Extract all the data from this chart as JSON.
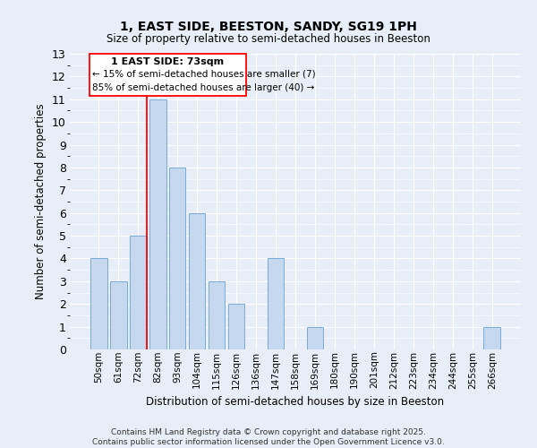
{
  "title": "1, EAST SIDE, BEESTON, SANDY, SG19 1PH",
  "subtitle": "Size of property relative to semi-detached houses in Beeston",
  "xlabel": "Distribution of semi-detached houses by size in Beeston",
  "ylabel": "Number of semi-detached properties",
  "categories": [
    "50sqm",
    "61sqm",
    "72sqm",
    "82sqm",
    "93sqm",
    "104sqm",
    "115sqm",
    "126sqm",
    "136sqm",
    "147sqm",
    "158sqm",
    "169sqm",
    "180sqm",
    "190sqm",
    "201sqm",
    "212sqm",
    "223sqm",
    "234sqm",
    "244sqm",
    "255sqm",
    "266sqm"
  ],
  "values": [
    4,
    3,
    5,
    11,
    8,
    6,
    3,
    2,
    0,
    4,
    0,
    1,
    0,
    0,
    0,
    0,
    0,
    0,
    0,
    0,
    1
  ],
  "bar_color": "#c5d8f0",
  "bar_edge_color": "#7aaad4",
  "background_color": "#e8eef8",
  "grid_color": "#ffffff",
  "annotation_text_line1": "1 EAST SIDE: 73sqm",
  "annotation_text_line2": "← 15% of semi-detached houses are smaller (7)",
  "annotation_text_line3": "85% of semi-detached houses are larger (40) →",
  "ylim": [
    0,
    13
  ],
  "red_line_x": 2.43,
  "footer_line1": "Contains HM Land Registry data © Crown copyright and database right 2025.",
  "footer_line2": "Contains public sector information licensed under the Open Government Licence v3.0."
}
